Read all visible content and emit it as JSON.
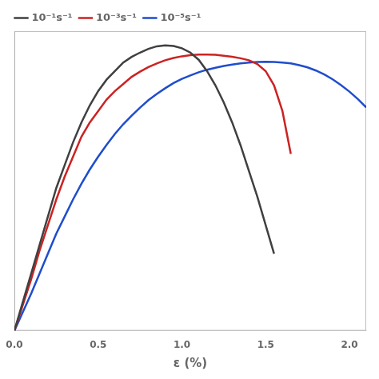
{
  "chart_data": {
    "type": "line",
    "title": "",
    "xlabel": "ε (%)",
    "ylabel": "",
    "xlim": [
      0.0,
      2.1
    ],
    "xticks": [
      {
        "value": 0.0,
        "label": "0.0"
      },
      0.5,
      {
        "value": 1.0,
        "label": "1.0"
      },
      1.5,
      {
        "value": 2.0,
        "label": "2.0"
      }
    ],
    "ylim": [
      0.0,
      1.05
    ],
    "yticks": [
      0.0,
      0.2,
      0.4,
      0.6,
      0.8,
      1.0
    ],
    "tick_labels": "x",
    "grid": false,
    "legend": "upper left",
    "series": [
      {
        "name": "10⁻¹s⁻¹",
        "color": "#404040",
        "x": [
          0.0,
          0.05,
          0.1,
          0.15,
          0.2,
          0.25,
          0.3,
          0.35,
          0.4,
          0.45,
          0.5,
          0.55,
          0.6,
          0.65,
          0.7,
          0.75,
          0.8,
          0.85,
          0.9,
          0.95,
          1.0,
          1.05,
          1.1,
          1.15,
          1.2,
          1.25,
          1.3,
          1.35,
          1.4,
          1.45,
          1.5,
          1.55
        ],
        "values": [
          0.0,
          0.1,
          0.2,
          0.3,
          0.4,
          0.5,
          0.58,
          0.66,
          0.73,
          0.79,
          0.84,
          0.88,
          0.91,
          0.94,
          0.96,
          0.975,
          0.988,
          0.997,
          1.0,
          0.998,
          0.99,
          0.975,
          0.95,
          0.91,
          0.86,
          0.8,
          0.73,
          0.65,
          0.56,
          0.47,
          0.37,
          0.27
        ]
      },
      {
        "name": "10⁻³s⁻¹",
        "color": "#cc2222",
        "x": [
          0.0,
          0.05,
          0.1,
          0.15,
          0.2,
          0.25,
          0.3,
          0.35,
          0.4,
          0.45,
          0.5,
          0.55,
          0.6,
          0.65,
          0.7,
          0.75,
          0.8,
          0.85,
          0.9,
          0.95,
          1.0,
          1.05,
          1.1,
          1.15,
          1.2,
          1.25,
          1.3,
          1.35,
          1.4,
          1.45,
          1.5,
          1.55,
          1.6,
          1.65
        ],
        "values": [
          0.0,
          0.09,
          0.18,
          0.28,
          0.37,
          0.46,
          0.54,
          0.61,
          0.68,
          0.73,
          0.77,
          0.81,
          0.84,
          0.865,
          0.89,
          0.908,
          0.924,
          0.937,
          0.948,
          0.956,
          0.962,
          0.966,
          0.968,
          0.968,
          0.967,
          0.964,
          0.96,
          0.955,
          0.948,
          0.935,
          0.91,
          0.86,
          0.77,
          0.62
        ]
      },
      {
        "name": "10⁻⁵s⁻¹",
        "color": "#1f4dcc",
        "x": [
          0.0,
          0.05,
          0.1,
          0.15,
          0.2,
          0.25,
          0.3,
          0.35,
          0.4,
          0.45,
          0.5,
          0.55,
          0.6,
          0.65,
          0.7,
          0.75,
          0.8,
          0.85,
          0.9,
          0.95,
          1.0,
          1.05,
          1.1,
          1.15,
          1.2,
          1.25,
          1.3,
          1.35,
          1.4,
          1.45,
          1.5,
          1.55,
          1.6,
          1.65,
          1.7,
          1.75,
          1.8,
          1.85,
          1.9,
          1.95,
          2.0,
          2.05,
          2.1
        ],
        "values": [
          0.0,
          0.065,
          0.13,
          0.2,
          0.27,
          0.34,
          0.4,
          0.46,
          0.515,
          0.565,
          0.61,
          0.651,
          0.69,
          0.724,
          0.754,
          0.782,
          0.808,
          0.83,
          0.85,
          0.868,
          0.883,
          0.895,
          0.906,
          0.915,
          0.922,
          0.928,
          0.933,
          0.937,
          0.94,
          0.942,
          0.943,
          0.942,
          0.94,
          0.937,
          0.931,
          0.923,
          0.912,
          0.898,
          0.881,
          0.861,
          0.838,
          0.812,
          0.783
        ]
      }
    ]
  }
}
